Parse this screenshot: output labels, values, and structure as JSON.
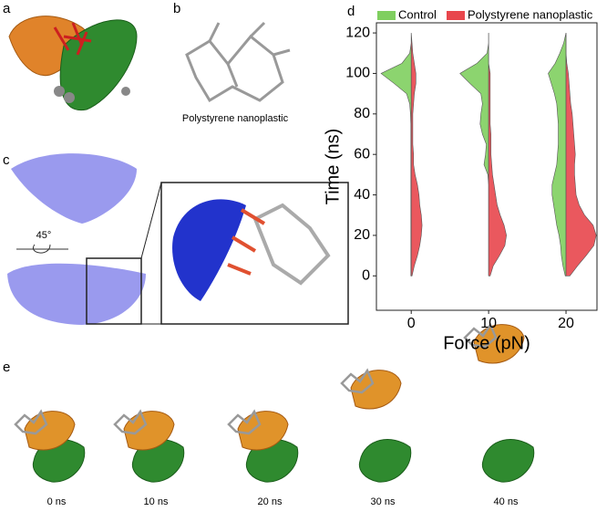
{
  "labels": {
    "a": "a",
    "b": "b",
    "c": "c",
    "d": "d",
    "e": "e",
    "b_caption": "Polystyrene nanoplastic",
    "c_angle": "45°",
    "e_times": [
      "0 ns",
      "10 ns",
      "20 ns",
      "30 ns",
      "40 ns"
    ]
  },
  "chart_data": {
    "type": "violin",
    "x_label": "Force (pN)",
    "y_label": "Time (ns)",
    "xlim": [
      -4.5,
      24
    ],
    "ylim": [
      -17,
      125
    ],
    "xticks": [
      0,
      10,
      20
    ],
    "yticks": [
      0,
      20,
      40,
      60,
      80,
      100,
      120
    ],
    "x": [
      0,
      10,
      20
    ],
    "legend": "top",
    "y_grid": [
      0,
      5,
      10,
      15,
      20,
      25,
      30,
      35,
      40,
      45,
      50,
      55,
      60,
      65,
      70,
      75,
      80,
      85,
      90,
      95,
      100,
      105,
      110,
      115,
      120
    ],
    "series": [
      {
        "name": "Control",
        "color": "#7fcf5f",
        "side": "left",
        "values": [
          [
            0.05,
            0.05,
            0.05,
            0.05,
            0.05,
            0.05,
            0.05,
            0.05,
            0.05,
            0.05,
            0.05,
            0.05,
            0.05,
            0.05,
            0.05,
            0.05,
            0.1,
            0.2,
            0.6,
            2.2,
            3.9,
            1.2,
            0.2,
            0,
            0
          ],
          [
            0,
            0,
            0,
            0,
            0,
            0,
            0,
            0,
            0,
            0,
            0.1,
            0.6,
            0.4,
            0.3,
            0.8,
            1.1,
            1.0,
            0.8,
            1.0,
            2.4,
            3.7,
            1.5,
            0.2,
            0,
            0
          ],
          [
            0.1,
            0.4,
            0.6,
            0.7,
            0.9,
            1.2,
            1.4,
            1.6,
            1.8,
            1.8,
            1.5,
            1.2,
            1.1,
            1.0,
            1.0,
            1.0,
            1.1,
            1.2,
            1.5,
            1.9,
            2.3,
            1.4,
            0.8,
            0.3,
            0
          ]
        ]
      },
      {
        "name": "Polystyrene nanoplastic",
        "color": "#e8464c",
        "side": "right",
        "values": [
          [
            0.1,
            0.4,
            0.8,
            1.1,
            1.3,
            1.4,
            1.3,
            1.1,
            1.0,
            0.8,
            0.5,
            0.3,
            0.3,
            0.2,
            0.2,
            0.2,
            0.2,
            0.3,
            0.4,
            0.6,
            0.6,
            0.4,
            0.2,
            0.1,
            0
          ],
          [
            0.2,
            0.6,
            1.4,
            2.1,
            2.3,
            2.0,
            1.5,
            1.1,
            0.9,
            0.7,
            0.5,
            0.4,
            0.3,
            0.3,
            0.3,
            0.2,
            0.2,
            0.2,
            0.2,
            0.2,
            0.2,
            0,
            0,
            0,
            0
          ],
          [
            0.5,
            1.5,
            2.6,
            3.6,
            3.9,
            3.5,
            2.4,
            1.7,
            1.3,
            1.2,
            1.1,
            1.1,
            1.2,
            1.1,
            1.0,
            0.9,
            0.8,
            0.6,
            0.5,
            0.4,
            0.3,
            0.1,
            0,
            0,
            0
          ]
        ]
      }
    ]
  }
}
